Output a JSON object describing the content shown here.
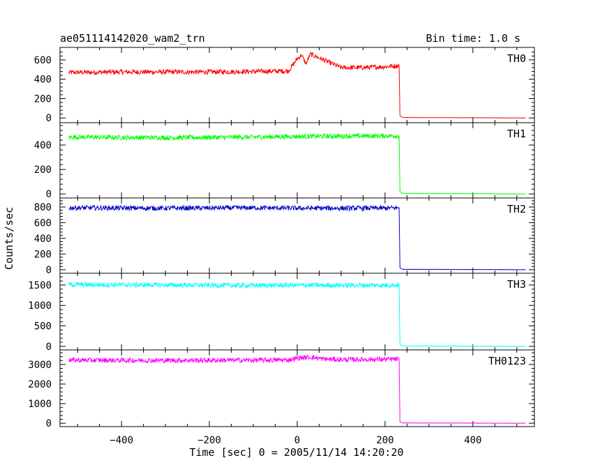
{
  "chart_data": {
    "type": "line",
    "title": "ae051114142020_wam2_trn",
    "bin_time_label": "Bin time: 1.0 s",
    "xlabel": "Time [sec] 0 = 2005/11/14 14:20:20",
    "ylabel": "Counts/sec",
    "xlim": [
      -540,
      540
    ],
    "x_ticks": [
      -400,
      -200,
      0,
      200,
      400
    ],
    "x_tick_labels": [
      "−400",
      "−200",
      "0",
      "200",
      "400"
    ],
    "grid": false,
    "panels": [
      {
        "name": "TH0",
        "color": "#ff0000",
        "ylim": [
          -20,
          700
        ],
        "y_ticks": [
          0,
          200,
          400,
          600
        ],
        "y_tick_labels": [
          "0",
          "200",
          "400",
          "600"
        ],
        "series_points": [
          [
            -520,
            470
          ],
          [
            -400,
            475
          ],
          [
            -300,
            475
          ],
          [
            -200,
            475
          ],
          [
            -100,
            480
          ],
          [
            -20,
            485
          ],
          [
            0,
            610
          ],
          [
            10,
            650
          ],
          [
            20,
            560
          ],
          [
            30,
            660
          ],
          [
            60,
            600
          ],
          [
            100,
            520
          ],
          [
            150,
            520
          ],
          [
            200,
            530
          ],
          [
            232,
            540
          ],
          [
            234,
            20
          ],
          [
            240,
            5
          ],
          [
            520,
            0
          ]
        ]
      },
      {
        "name": "TH1",
        "color": "#00ff00",
        "ylim": [
          -10,
          560
        ],
        "y_ticks": [
          0,
          200,
          400
        ],
        "y_tick_labels": [
          "0",
          "200",
          "400"
        ],
        "series_points": [
          [
            -520,
            465
          ],
          [
            -300,
            460
          ],
          [
            -100,
            465
          ],
          [
            0,
            470
          ],
          [
            200,
            475
          ],
          [
            232,
            475
          ],
          [
            234,
            20
          ],
          [
            240,
            5
          ],
          [
            520,
            0
          ]
        ]
      },
      {
        "name": "TH2",
        "color": "#0000cc",
        "ylim": [
          -10,
          880
        ],
        "y_ticks": [
          0,
          200,
          400,
          600,
          800
        ],
        "y_tick_labels": [
          "0",
          "200",
          "400",
          "600",
          "800"
        ],
        "series_points": [
          [
            -520,
            790
          ],
          [
            -300,
            785
          ],
          [
            -100,
            790
          ],
          [
            0,
            785
          ],
          [
            200,
            785
          ],
          [
            232,
            790
          ],
          [
            234,
            20
          ],
          [
            240,
            5
          ],
          [
            520,
            0
          ]
        ]
      },
      {
        "name": "TH3",
        "color": "#00ffff",
        "ylim": [
          -20,
          1720
        ],
        "y_ticks": [
          0,
          500,
          1000,
          1500
        ],
        "y_tick_labels": [
          "0",
          "500",
          "1000",
          "1500"
        ],
        "series_points": [
          [
            -520,
            1510
          ],
          [
            -300,
            1500
          ],
          [
            -100,
            1490
          ],
          [
            0,
            1495
          ],
          [
            200,
            1495
          ],
          [
            232,
            1500
          ],
          [
            234,
            40
          ],
          [
            240,
            10
          ],
          [
            520,
            0
          ]
        ]
      },
      {
        "name": "TH0123",
        "color": "#ff00ff",
        "ylim": [
          -30,
          3600
        ],
        "y_ticks": [
          0,
          1000,
          2000,
          3000
        ],
        "y_tick_labels": [
          "0",
          "1000",
          "2000",
          "3000"
        ],
        "series_points": [
          [
            -520,
            3220
          ],
          [
            -300,
            3210
          ],
          [
            -100,
            3220
          ],
          [
            -20,
            3230
          ],
          [
            0,
            3320
          ],
          [
            30,
            3380
          ],
          [
            60,
            3280
          ],
          [
            100,
            3250
          ],
          [
            200,
            3260
          ],
          [
            232,
            3270
          ],
          [
            234,
            60
          ],
          [
            240,
            15
          ],
          [
            520,
            0
          ]
        ]
      }
    ]
  }
}
